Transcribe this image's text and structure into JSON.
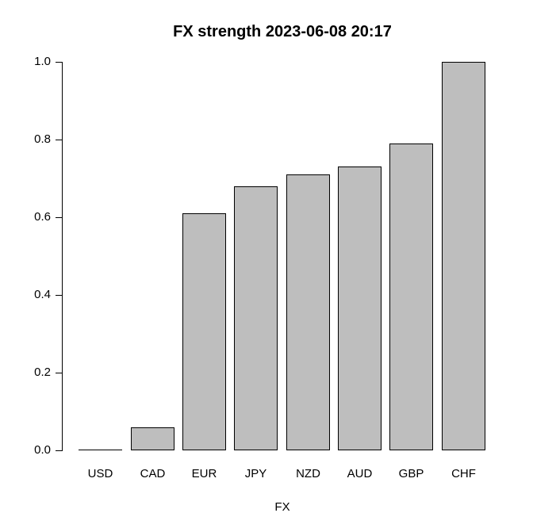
{
  "chart_data": {
    "type": "bar",
    "title": "FX strength 2023-06-08 20:17",
    "xlabel": "FX",
    "ylabel": "",
    "categories": [
      "USD",
      "CAD",
      "EUR",
      "JPY",
      "NZD",
      "AUD",
      "GBP",
      "CHF"
    ],
    "values": [
      0.0,
      0.06,
      0.61,
      0.68,
      0.71,
      0.73,
      0.79,
      1.0
    ],
    "ylim": [
      0.0,
      1.0
    ],
    "yticks": [
      0.0,
      0.2,
      0.4,
      0.6,
      0.8,
      1.0
    ],
    "ytick_labels": [
      "0.0",
      "0.2",
      "0.4",
      "0.6",
      "0.8",
      "1.0"
    ],
    "grid": false,
    "legend_position": "none",
    "colors": {
      "bar_fill": "#BEBEBE",
      "bar_border": "#000000",
      "axis": "#000000",
      "text": "#000000",
      "background": "#FFFFFF"
    }
  }
}
